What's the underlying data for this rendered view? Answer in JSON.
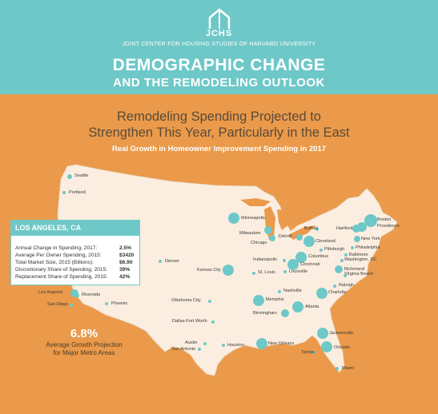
{
  "header": {
    "logo_text": "JCHS",
    "org_name": "JOINT CENTER FOR HOUSING STUDIES OF HARVARD UNIVERSITY",
    "title_line1": "DEMOGRAPHIC CHANGE",
    "title_line2": "AND THE REMODELING OUTLOOK",
    "bg_color": "#6fc8c8"
  },
  "headline": {
    "line1": "Remodeling Spending Projected to",
    "line2": "Strengthen This Year, Particularly in the East",
    "subtitle": "Real Growth in Homeowner Improvement Spending in 2017",
    "bg_color": "#ea9a4a"
  },
  "popup": {
    "title": "LOS ANGELES, CA",
    "rows": [
      {
        "label": "Annual Change in Spending, 2017:",
        "value": "2.5%"
      },
      {
        "label": "Average Per Owner Spending, 2015:",
        "value": "$3420"
      },
      {
        "label": "Total Market Size, 2015 (Billions):",
        "value": "$6.90"
      },
      {
        "label": "Discretionary Share of Spending, 2015:",
        "value": "39%"
      },
      {
        "label": "Replacement Share of Spending, 2015:",
        "value": "42%"
      }
    ]
  },
  "summary": {
    "value": "6.8%",
    "label_line1": "Average Growth Projection",
    "label_line2": "for Major Metro Areas"
  },
  "cities": [
    {
      "name": "Seattle",
      "size": "small"
    },
    {
      "name": "Portland",
      "size": "small"
    },
    {
      "name": "Minneapolis",
      "size": "large"
    },
    {
      "name": "Milwaukee",
      "size": "medium"
    },
    {
      "name": "Chicago",
      "size": "medium"
    },
    {
      "name": "Detroit",
      "size": "medium"
    },
    {
      "name": "Buffalo",
      "size": "small"
    },
    {
      "name": "Boston",
      "size": "large"
    },
    {
      "name": "Providence",
      "size": "medium"
    },
    {
      "name": "Hartford",
      "size": "medium"
    },
    {
      "name": "New York",
      "size": "medium"
    },
    {
      "name": "Cleveland",
      "size": "large"
    },
    {
      "name": "Pittsburgh",
      "size": "small"
    },
    {
      "name": "Philadelphia",
      "size": "small"
    },
    {
      "name": "Baltimore",
      "size": "small"
    },
    {
      "name": "Washington, DC",
      "size": "small"
    },
    {
      "name": "Richmond",
      "size": "medium"
    },
    {
      "name": "Virginia Beach",
      "size": "small"
    },
    {
      "name": "Columbus",
      "size": "large"
    },
    {
      "name": "Cincinnati",
      "size": "large"
    },
    {
      "name": "Indianapolis",
      "size": "small"
    },
    {
      "name": "Louisville",
      "size": "small"
    },
    {
      "name": "St. Louis",
      "size": "small"
    },
    {
      "name": "Kansas City",
      "size": "large"
    },
    {
      "name": "Denver",
      "size": "small"
    },
    {
      "name": "Nashville",
      "size": "small"
    },
    {
      "name": "Raleigh",
      "size": "small"
    },
    {
      "name": "Charlotte",
      "size": "large"
    },
    {
      "name": "Memphis",
      "size": "large"
    },
    {
      "name": "Atlanta",
      "size": "large"
    },
    {
      "name": "Birmingham",
      "size": "medium"
    },
    {
      "name": "Oklahoma City",
      "size": "small"
    },
    {
      "name": "Dallas-Fort Worth",
      "size": "small"
    },
    {
      "name": "Austin",
      "size": "small"
    },
    {
      "name": "San Antonio",
      "size": "small"
    },
    {
      "name": "Houston",
      "size": "small"
    },
    {
      "name": "New Orleans",
      "size": "large"
    },
    {
      "name": "Jacksonville",
      "size": "large"
    },
    {
      "name": "Orlando",
      "size": "large"
    },
    {
      "name": "Tampa",
      "size": "small"
    },
    {
      "name": "Miami",
      "size": "small"
    },
    {
      "name": "Los Angeles",
      "size": "medium"
    },
    {
      "name": "Riverside",
      "size": "small"
    },
    {
      "name": "San Diego",
      "size": "small"
    },
    {
      "name": "Phoenix",
      "size": "small"
    }
  ],
  "colors": {
    "land": "#fbeee0",
    "bubble": "#6fc8c8",
    "water": "#ea9a4a"
  }
}
